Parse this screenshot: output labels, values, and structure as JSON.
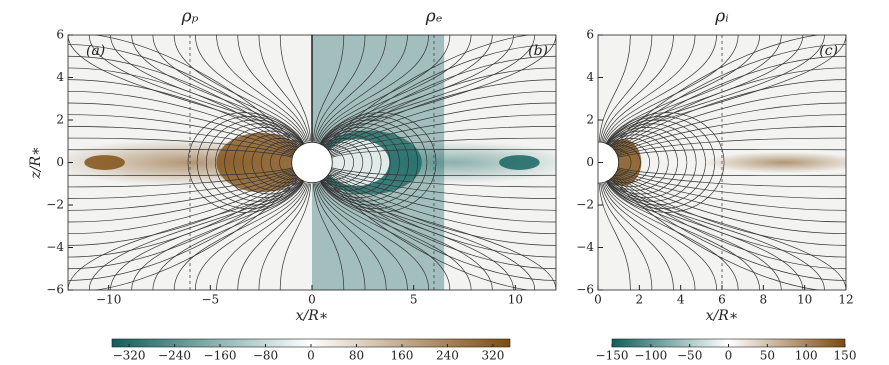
{
  "chart_data": [
    {
      "type": "heatmap",
      "titles": [
        "ρₚ",
        "ρₑ"
      ],
      "panel_labels": [
        "(a)",
        "(b)"
      ],
      "xlabel": "x/R∗",
      "ylabel": "z/R∗",
      "xlim": [
        -12,
        12
      ],
      "xticks": [
        {
          "value": -10,
          "label": "−10"
        },
        {
          "value": -5,
          "label": "−5"
        },
        0,
        5,
        10
      ],
      "ylim": [
        -6,
        6
      ],
      "yticks": [
        {
          "value": -6,
          "label": "−6"
        },
        {
          "value": -4,
          "label": "−4"
        },
        {
          "value": -2,
          "label": "−2"
        },
        0,
        2,
        4,
        6
      ],
      "vlines": [
        -6,
        6
      ],
      "colors": [
        "#0d5f5b",
        "#ffffff",
        "#7c4a0e"
      ],
      "colorbar": {
        "lim": [
          -350,
          350
        ],
        "ticks": [
          {
            "value": -320,
            "label": "−320"
          },
          {
            "value": -240,
            "label": "−240"
          },
          {
            "value": -160,
            "label": "−160"
          },
          {
            "value": -80,
            "label": "−80"
          },
          0,
          80,
          160,
          240,
          320
        ]
      }
    },
    {
      "type": "heatmap",
      "titles": [
        "ρᵢ"
      ],
      "panel_labels": [
        "(c)"
      ],
      "xlabel": "x/R∗",
      "xlim": [
        0,
        12
      ],
      "xticks": [
        0,
        2,
        4,
        6,
        8,
        10,
        12
      ],
      "ylim": [
        -6,
        6
      ],
      "yticks": [
        {
          "value": -6,
          "label": "−6"
        },
        {
          "value": -4,
          "label": "−4"
        },
        {
          "value": -2,
          "label": "−2"
        },
        0,
        2,
        4,
        6
      ],
      "vlines": [
        6
      ],
      "colors": [
        "#0d5f5b",
        "#ffffff",
        "#7c4a0e"
      ],
      "colorbar": {
        "lim": [
          -150,
          150
        ],
        "ticks": [
          {
            "value": -150,
            "label": "−150"
          },
          {
            "value": -100,
            "label": "−100"
          },
          {
            "value": -50,
            "label": "−50"
          },
          0,
          50,
          100,
          150
        ]
      }
    }
  ]
}
